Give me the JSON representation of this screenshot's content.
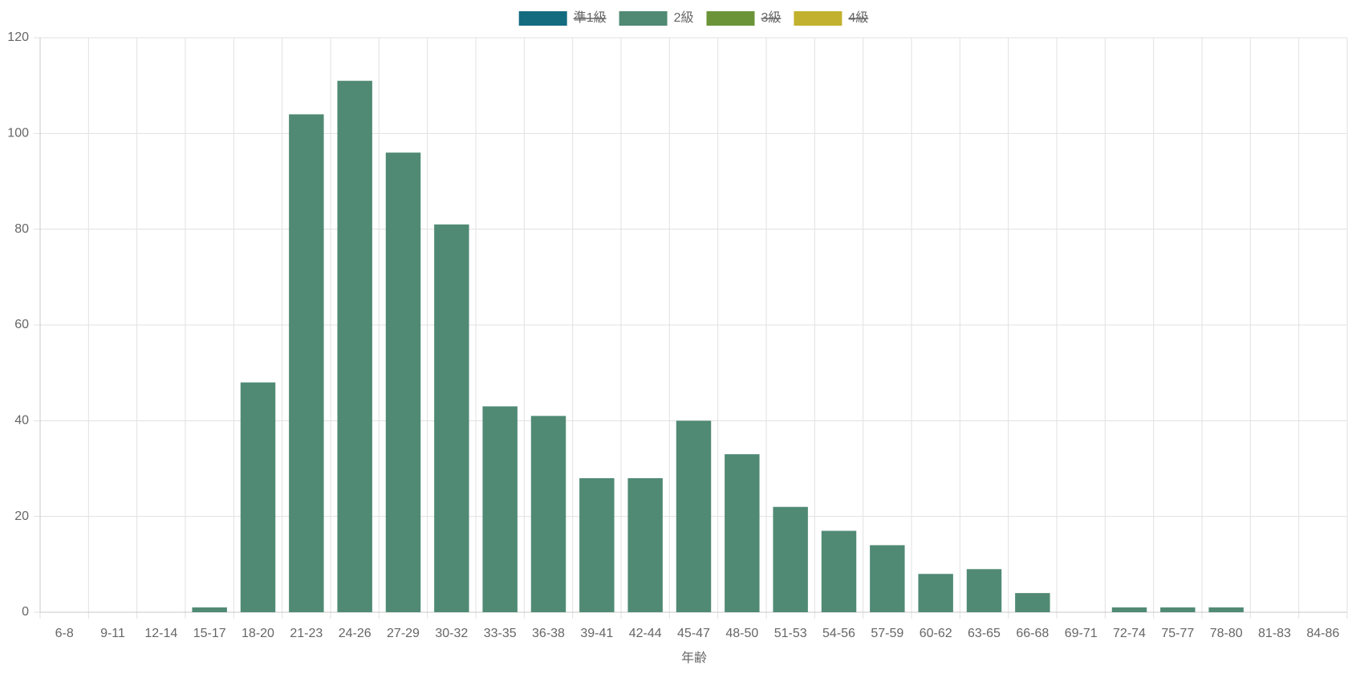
{
  "chart_data": {
    "type": "bar",
    "x_label": "年齢",
    "categories": [
      "6-8",
      "9-11",
      "12-14",
      "15-17",
      "18-20",
      "21-23",
      "24-26",
      "27-29",
      "30-32",
      "33-35",
      "36-38",
      "39-41",
      "42-44",
      "45-47",
      "48-50",
      "51-53",
      "54-56",
      "57-59",
      "60-62",
      "63-65",
      "66-68",
      "69-71",
      "72-74",
      "75-77",
      "78-80",
      "81-83",
      "84-86"
    ],
    "series": [
      {
        "name": "準1級",
        "color": "#136b80",
        "hidden": true
      },
      {
        "name": "2級",
        "color": "#508a74",
        "values": [
          0,
          0,
          0,
          1,
          48,
          104,
          111,
          96,
          81,
          43,
          41,
          28,
          28,
          40,
          33,
          22,
          17,
          14,
          8,
          9,
          4,
          0,
          1,
          1,
          1,
          0,
          0
        ]
      },
      {
        "name": "3級",
        "color": "#6b9439",
        "hidden": true
      },
      {
        "name": "4級",
        "color": "#c2b12e",
        "hidden": true
      }
    ],
    "ylim": [
      0,
      120
    ],
    "yticks": [
      0,
      20,
      40,
      60,
      80,
      100,
      120
    ],
    "grid": true
  }
}
